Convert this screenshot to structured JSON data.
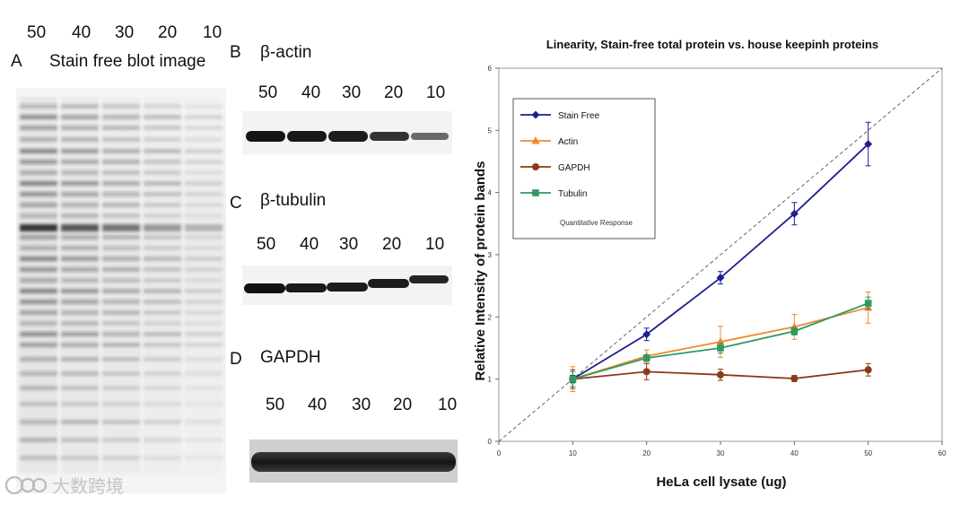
{
  "panel_a": {
    "lanes": [
      "50",
      "40",
      "30",
      "20",
      "10"
    ],
    "letter": "A",
    "title": "Stain free blot image"
  },
  "panel_b": {
    "letter": "B",
    "title": "β-actin",
    "lanes": [
      "50",
      "40",
      "30",
      "20",
      "10"
    ]
  },
  "panel_c": {
    "letter": "C",
    "title": "β-tubulin",
    "lanes": [
      "50",
      "40",
      "30",
      "20",
      "10"
    ]
  },
  "panel_d": {
    "letter": "D",
    "title": "GAPDH",
    "lanes": [
      "50",
      "40",
      "30",
      "20",
      "10"
    ]
  },
  "watermark": "大数跨境",
  "chart_data": {
    "type": "line",
    "title": "Linearity, Stain-free total protein  vs. house keepinh proteins",
    "xlabel": "HeLa cell lysate (ug)",
    "ylabel": "Relative Intensity of protein bands",
    "xlim": [
      0,
      60
    ],
    "ylim": [
      0,
      6
    ],
    "xticks": [
      "0",
      "10",
      "20",
      "30",
      "40",
      "50",
      "60"
    ],
    "yticks": [
      "0",
      "1",
      "2",
      "3",
      "4",
      "5",
      "6"
    ],
    "x": [
      10,
      20,
      30,
      40,
      50
    ],
    "legend_position": "top-left",
    "legend_note": "Quantitative Response",
    "reference_line": {
      "style": "dashed",
      "from": [
        0,
        0
      ],
      "to": [
        60,
        6
      ]
    },
    "series": [
      {
        "name": "Stain Free",
        "color": "#1f1f8f",
        "marker": "diamond",
        "values": [
          1.0,
          1.72,
          2.63,
          3.66,
          4.78
        ],
        "errors": [
          0.06,
          0.1,
          0.1,
          0.18,
          0.35
        ]
      },
      {
        "name": "Actin",
        "color": "#f08a2c",
        "marker": "triangle",
        "values": [
          1.0,
          1.37,
          1.6,
          1.84,
          2.15
        ],
        "errors": [
          0.2,
          0.1,
          0.25,
          0.2,
          0.25
        ]
      },
      {
        "name": "GAPDH",
        "color": "#8b3a17",
        "marker": "circle",
        "values": [
          1.0,
          1.12,
          1.07,
          1.01,
          1.15
        ],
        "errors": [
          0.15,
          0.13,
          0.09,
          0.05,
          0.1
        ]
      },
      {
        "name": "Tubulin",
        "color": "#2e9a62",
        "marker": "square",
        "values": [
          1.0,
          1.34,
          1.5,
          1.77,
          2.22
        ],
        "errors": [
          0.12,
          0.05,
          0.08,
          0.06,
          0.1
        ]
      }
    ]
  }
}
